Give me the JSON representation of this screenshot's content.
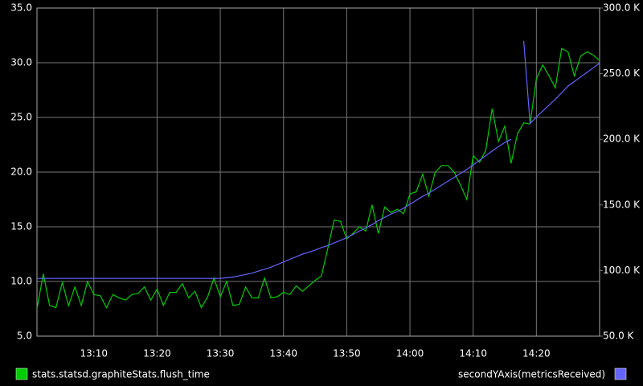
{
  "chart_data": {
    "type": "line",
    "x": [
      "13:01",
      "13:02",
      "13:03",
      "13:04",
      "13:05",
      "13:06",
      "13:07",
      "13:08",
      "13:09",
      "13:10",
      "13:11",
      "13:12",
      "13:13",
      "13:14",
      "13:15",
      "13:16",
      "13:17",
      "13:18",
      "13:19",
      "13:20",
      "13:21",
      "13:22",
      "13:23",
      "13:24",
      "13:25",
      "13:26",
      "13:27",
      "13:28",
      "13:29",
      "13:30",
      "13:31",
      "13:32",
      "13:33",
      "13:34",
      "13:35",
      "13:36",
      "13:37",
      "13:38",
      "13:39",
      "13:40",
      "13:41",
      "13:42",
      "13:43",
      "13:44",
      "13:45",
      "13:46",
      "13:47",
      "13:48",
      "13:49",
      "13:50",
      "13:51",
      "13:52",
      "13:53",
      "13:54",
      "13:55",
      "13:56",
      "13:57",
      "13:58",
      "13:59",
      "14:00",
      "14:01",
      "14:02",
      "14:03",
      "14:04",
      "14:05",
      "14:06",
      "14:07",
      "14:08",
      "14:09",
      "14:10",
      "14:11",
      "14:12",
      "14:13",
      "14:14",
      "14:15",
      "14:16",
      "14:17",
      "14:18",
      "14:19",
      "14:20",
      "14:21",
      "14:22",
      "14:23",
      "14:24",
      "14:25",
      "14:26",
      "14:27",
      "14:28",
      "14:29",
      "14:30"
    ],
    "xlim": [
      "13:01",
      "14:30"
    ],
    "xticks": [
      "13:10",
      "13:20",
      "13:30",
      "13:40",
      "13:50",
      "14:00",
      "14:10",
      "14:20"
    ],
    "ylim": [
      5,
      35
    ],
    "yticks": [
      {
        "value": 5,
        "label": "5.0"
      },
      {
        "value": 10,
        "label": "10.0"
      },
      {
        "value": 15,
        "label": "15.0"
      },
      {
        "value": 20,
        "label": "20.0"
      },
      {
        "value": 25,
        "label": "25.0"
      },
      {
        "value": 30,
        "label": "30.0"
      },
      {
        "value": 35,
        "label": "35.0"
      }
    ],
    "y2lim": [
      50000,
      300000
    ],
    "y2ticks": [
      {
        "value": 50000,
        "label": "50.0 K"
      },
      {
        "value": 100000,
        "label": "100.0 K"
      },
      {
        "value": 150000,
        "label": "150.0 K"
      },
      {
        "value": 200000,
        "label": "200.0 K"
      },
      {
        "value": 250000,
        "label": "250.0 K"
      },
      {
        "value": 300000,
        "label": "300.0 K"
      }
    ],
    "grid": true,
    "series": [
      {
        "name": "stats.statsd.graphiteStats.flush_time",
        "color": "#00cc00",
        "values": [
          7.5,
          10.7,
          7.8,
          7.6,
          9.9,
          7.8,
          9.5,
          7.8,
          10.0,
          8.8,
          8.7,
          7.6,
          8.8,
          8.5,
          8.3,
          8.8,
          8.9,
          9.5,
          8.3,
          9.3,
          7.8,
          9.0,
          9.0,
          9.8,
          8.5,
          9.1,
          7.6,
          8.6,
          10.3,
          8.6,
          10.0,
          7.8,
          7.9,
          9.5,
          8.5,
          8.5,
          10.3,
          8.5,
          8.6,
          9.0,
          8.8,
          9.6,
          9.1,
          9.6,
          10.1,
          10.5,
          13.0,
          15.6,
          15.5,
          13.9,
          14.4,
          15.0,
          14.6,
          17.0,
          14.4,
          16.8,
          16.3,
          16.6,
          16.2,
          18.0,
          18.2,
          19.8,
          17.8,
          20.0,
          20.6,
          20.6,
          20.0,
          18.8,
          17.5,
          21.5,
          20.9,
          22.0,
          25.8,
          22.8,
          24.2,
          20.8,
          23.5,
          24.5,
          24.4,
          28.5,
          29.8,
          28.8,
          27.7,
          31.3,
          31.0,
          28.8,
          30.6,
          31.0,
          30.7,
          30.2
        ]
      },
      {
        "name": "secondYAxis(metricsReceived)",
        "color": "#6464ff",
        "axis": "y2",
        "values": [
          94000,
          94000,
          94000,
          94000,
          94000,
          94000,
          94000,
          94000,
          94000,
          94000,
          94000,
          94000,
          94000,
          94000,
          94000,
          94000,
          94000,
          94000,
          94000,
          94000,
          94000,
          94000,
          94000,
          94000,
          94000,
          94000,
          94000,
          94000,
          94000,
          94000,
          94500,
          95000,
          96000,
          97000,
          98000,
          99500,
          101000,
          102500,
          104500,
          106500,
          108500,
          110500,
          112500,
          114000,
          115500,
          117500,
          119000,
          121000,
          123000,
          125000,
          127500,
          130000,
          132500,
          135000,
          138000,
          140500,
          143000,
          145000,
          147500,
          150500,
          153500,
          156500,
          159000,
          162000,
          165000,
          168000,
          171000,
          174000,
          177000,
          180500,
          184000,
          187500,
          191000,
          194500,
          197500,
          200000,
          null,
          275000,
          212000,
          217000,
          221500,
          226000,
          230500,
          235500,
          240500,
          244000,
          247500,
          251000,
          254500,
          258000
        ]
      }
    ]
  }
}
